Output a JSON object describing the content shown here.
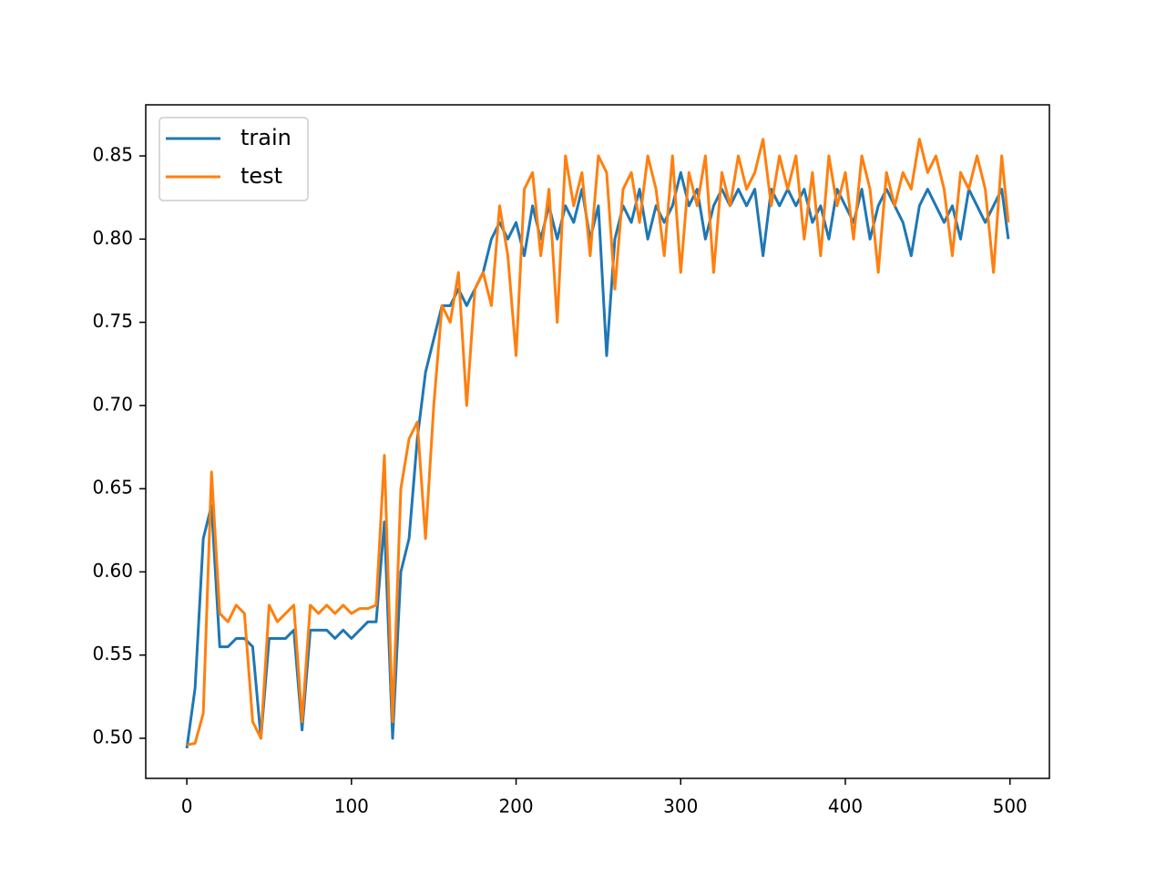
{
  "chart_data": {
    "type": "line",
    "x": [
      0,
      5,
      10,
      15,
      20,
      25,
      30,
      35,
      40,
      45,
      50,
      55,
      60,
      65,
      70,
      75,
      80,
      85,
      90,
      95,
      100,
      105,
      110,
      115,
      120,
      125,
      130,
      135,
      140,
      145,
      150,
      155,
      160,
      165,
      170,
      175,
      180,
      185,
      190,
      195,
      200,
      205,
      210,
      215,
      220,
      225,
      230,
      235,
      240,
      245,
      250,
      255,
      260,
      265,
      270,
      275,
      280,
      285,
      290,
      295,
      300,
      305,
      310,
      315,
      320,
      325,
      330,
      335,
      340,
      345,
      350,
      355,
      360,
      365,
      370,
      375,
      380,
      385,
      390,
      395,
      400,
      405,
      410,
      415,
      420,
      425,
      430,
      435,
      440,
      445,
      450,
      455,
      460,
      465,
      470,
      475,
      480,
      485,
      490,
      495,
      499
    ],
    "series": [
      {
        "name": "train",
        "color": "#1f77b4",
        "values": [
          0.494,
          0.53,
          0.62,
          0.64,
          0.555,
          0.555,
          0.56,
          0.56,
          0.555,
          0.5,
          0.56,
          0.56,
          0.56,
          0.565,
          0.505,
          0.565,
          0.565,
          0.565,
          0.56,
          0.565,
          0.56,
          0.565,
          0.57,
          0.57,
          0.63,
          0.5,
          0.6,
          0.62,
          0.68,
          0.72,
          0.74,
          0.76,
          0.76,
          0.77,
          0.76,
          0.77,
          0.78,
          0.8,
          0.81,
          0.8,
          0.81,
          0.79,
          0.82,
          0.8,
          0.82,
          0.8,
          0.82,
          0.81,
          0.83,
          0.8,
          0.82,
          0.73,
          0.8,
          0.82,
          0.81,
          0.83,
          0.8,
          0.82,
          0.81,
          0.82,
          0.84,
          0.82,
          0.83,
          0.8,
          0.82,
          0.83,
          0.82,
          0.83,
          0.82,
          0.83,
          0.79,
          0.83,
          0.82,
          0.83,
          0.82,
          0.83,
          0.81,
          0.82,
          0.8,
          0.83,
          0.82,
          0.81,
          0.83,
          0.8,
          0.82,
          0.83,
          0.82,
          0.81,
          0.79,
          0.82,
          0.83,
          0.82,
          0.81,
          0.82,
          0.8,
          0.83,
          0.82,
          0.81,
          0.82,
          0.83,
          0.8
        ]
      },
      {
        "name": "test",
        "color": "#ff7f0e",
        "values": [
          0.496,
          0.497,
          0.515,
          0.66,
          0.575,
          0.57,
          0.58,
          0.575,
          0.51,
          0.5,
          0.58,
          0.57,
          0.575,
          0.58,
          0.51,
          0.58,
          0.575,
          0.58,
          0.575,
          0.58,
          0.575,
          0.578,
          0.578,
          0.58,
          0.67,
          0.51,
          0.65,
          0.68,
          0.69,
          0.62,
          0.7,
          0.76,
          0.75,
          0.78,
          0.7,
          0.77,
          0.78,
          0.76,
          0.82,
          0.79,
          0.73,
          0.83,
          0.84,
          0.79,
          0.83,
          0.75,
          0.85,
          0.82,
          0.84,
          0.79,
          0.85,
          0.84,
          0.77,
          0.83,
          0.84,
          0.81,
          0.85,
          0.83,
          0.79,
          0.85,
          0.78,
          0.84,
          0.82,
          0.85,
          0.78,
          0.84,
          0.82,
          0.85,
          0.83,
          0.84,
          0.86,
          0.82,
          0.85,
          0.83,
          0.85,
          0.8,
          0.84,
          0.79,
          0.85,
          0.82,
          0.84,
          0.8,
          0.85,
          0.83,
          0.78,
          0.84,
          0.82,
          0.84,
          0.83,
          0.86,
          0.84,
          0.85,
          0.83,
          0.79,
          0.84,
          0.83,
          0.85,
          0.83,
          0.78,
          0.85,
          0.81
        ]
      }
    ],
    "xlim": [
      -24.95,
      523.95
    ],
    "xticks": [
      0,
      100,
      200,
      300,
      400,
      500
    ],
    "ylim": [
      0.4759,
      0.8807
    ],
    "yticks": [
      {
        "value": 0.5,
        "label": "0.50"
      },
      0.55,
      {
        "value": 0.6,
        "label": "0.60"
      },
      0.65,
      {
        "value": 0.7,
        "label": "0.70"
      },
      0.75,
      {
        "value": 0.8,
        "label": "0.80"
      },
      0.85
    ],
    "legend": "upper left"
  }
}
